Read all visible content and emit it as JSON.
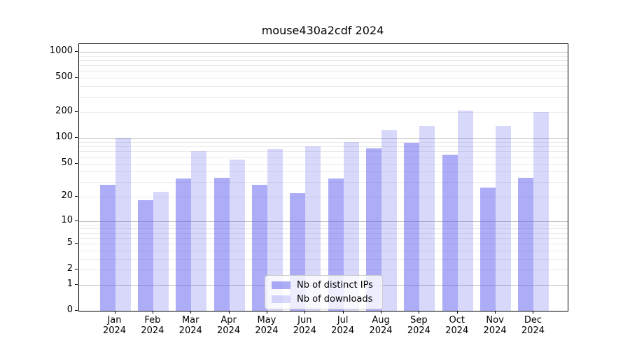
{
  "chart_data": {
    "type": "bar",
    "title": "mouse430a2cdf 2024",
    "categories": [
      "Jan",
      "Feb",
      "Mar",
      "Apr",
      "May",
      "Jun",
      "Jul",
      "Aug",
      "Sep",
      "Oct",
      "Nov",
      "Dec"
    ],
    "x_year_label": "2024",
    "series": [
      {
        "name": "Nb of distinct IPs",
        "key": "distinct-ips",
        "color": "#5A5AF080",
        "values": [
          28,
          18,
          33,
          34,
          28,
          22,
          33,
          75,
          87,
          64,
          26,
          34
        ]
      },
      {
        "name": "Nb of downloads",
        "key": "downloads",
        "color": "#5A5AF03D",
        "values": [
          100,
          23,
          70,
          56,
          74,
          80,
          89,
          123,
          138,
          209,
          138,
          200
        ]
      }
    ],
    "scale": "log1p",
    "ylim": [
      0,
      1236
    ],
    "y_ticks": [
      0,
      1,
      2,
      5,
      10,
      20,
      50,
      100,
      200,
      500,
      1000
    ],
    "y_major_gridlines": [
      1,
      10,
      100,
      1000
    ],
    "grid": true,
    "legend_position": "lower-center",
    "xlabel": "",
    "ylabel": ""
  },
  "colors": {
    "bar_base": "#5A5AF0",
    "grid_major": "#C3C3C3",
    "grid_minor": "#EBEBEB",
    "axis": "#000000",
    "legend_border": "#CCCCCC"
  }
}
